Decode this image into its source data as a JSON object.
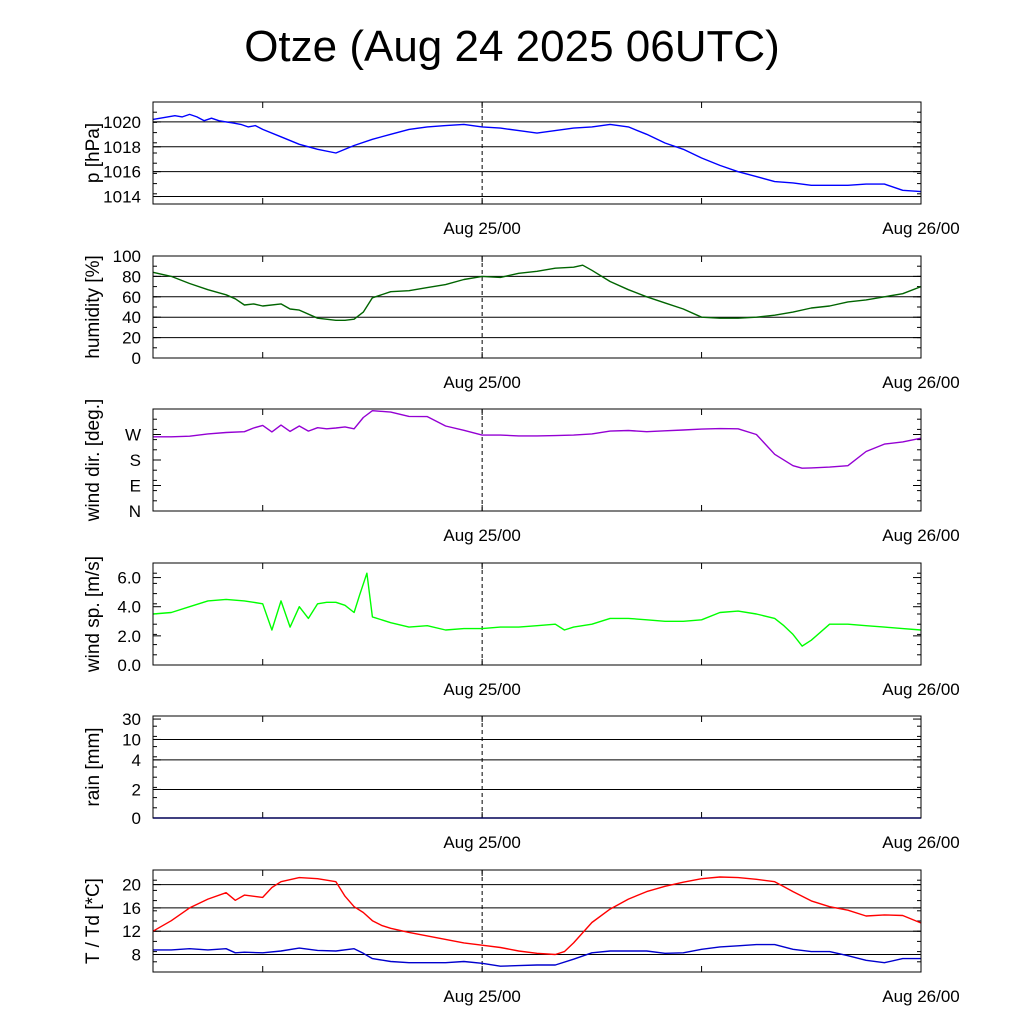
{
  "title": "Otze (Aug 24 2025 06UTC)",
  "chart_data": {
    "type": "line",
    "x_unit": "hours since Aug 24 06UTC",
    "x_range": [
      0,
      42
    ],
    "x_labels": [
      {
        "x": 18,
        "label": "Aug 25/00"
      },
      {
        "x": 42,
        "label": "Aug 26/00"
      }
    ],
    "minor_ticks_x": [
      6,
      18,
      30
    ],
    "panels": [
      {
        "id": "pressure",
        "ylabel": "p [hPa]",
        "ylim": [
          1013.4,
          1021.6
        ],
        "yticks": [
          1014,
          1016,
          1018,
          1020
        ],
        "ytick_labels": [
          "1014",
          "1016",
          "1018",
          "1020"
        ],
        "hlines": [
          1014,
          1016,
          1018,
          1020
        ],
        "series": [
          {
            "name": "pressure",
            "color": "#0000ff",
            "x": [
              0,
              0.4,
              0.8,
              1.2,
              1.6,
              2.0,
              2.4,
              2.8,
              3.2,
              3.6,
              4.0,
              4.4,
              4.8,
              5.2,
              5.6,
              6,
              7,
              8,
              9,
              10,
              11,
              12,
              13,
              14,
              15,
              16,
              17,
              18,
              19,
              20,
              21,
              22,
              23,
              24,
              25,
              26,
              27,
              28,
              29,
              30,
              31,
              32,
              33,
              34,
              35,
              36,
              37,
              38,
              39,
              40,
              41,
              42
            ],
            "y": [
              1020.2,
              1020.3,
              1020.4,
              1020.5,
              1020.4,
              1020.6,
              1020.4,
              1020.1,
              1020.3,
              1020.1,
              1020.0,
              1019.9,
              1019.8,
              1019.6,
              1019.7,
              1019.4,
              1018.8,
              1018.2,
              1017.8,
              1017.5,
              1018.1,
              1018.6,
              1019.0,
              1019.4,
              1019.6,
              1019.7,
              1019.8,
              1019.6,
              1019.5,
              1019.3,
              1019.1,
              1019.3,
              1019.5,
              1019.6,
              1019.8,
              1019.6,
              1019.0,
              1018.3,
              1017.8,
              1017.1,
              1016.5,
              1016.0,
              1015.6,
              1015.2,
              1015.1,
              1014.9,
              1014.9,
              1014.9,
              1015.0,
              1015.0,
              1014.5,
              1014.4
            ]
          }
        ]
      },
      {
        "id": "humidity",
        "ylabel": "humidity [%]",
        "ylim": [
          0,
          100
        ],
        "yticks": [
          0,
          20,
          40,
          60,
          80,
          100
        ],
        "ytick_labels": [
          "0",
          "20",
          "40",
          "60",
          "80",
          "100"
        ],
        "hlines": [
          20,
          40,
          60,
          80
        ],
        "series": [
          {
            "name": "humidity",
            "color": "#006400",
            "x": [
              0,
              1,
              2,
              3,
              4,
              4.5,
              5,
              5.5,
              6,
              7,
              7.5,
              8,
              9,
              10,
              10.5,
              11,
              11.5,
              12,
              13,
              14,
              15,
              16,
              17,
              18,
              19,
              20,
              21,
              22,
              23,
              23.5,
              24,
              25,
              26,
              27,
              28,
              29,
              30,
              31,
              32,
              33,
              34,
              35,
              36,
              37,
              38,
              39,
              40,
              41,
              42
            ],
            "y": [
              84,
              80,
              73,
              67,
              62,
              58,
              52,
              53,
              51,
              53,
              48,
              47,
              39,
              37,
              37,
              38,
              45,
              59,
              65,
              66,
              69,
              72,
              77,
              80,
              79,
              83,
              85,
              88,
              89,
              91,
              86,
              75,
              67,
              60,
              54,
              48,
              40,
              39,
              39,
              40,
              42,
              45,
              49,
              51,
              55,
              57,
              60,
              63,
              70
            ]
          }
        ]
      },
      {
        "id": "wind_direction",
        "ylabel": "wind dir. [deg.]",
        "ylim": [
          0,
          360
        ],
        "yticks": [
          0,
          90,
          180,
          270
        ],
        "ytick_labels": [
          "N",
          "E",
          "S",
          "W"
        ],
        "hlines": [],
        "series": [
          {
            "name": "wind direction",
            "color": "#9400d3",
            "x": [
              0,
              1,
              2,
              3,
              4,
              5,
              5.5,
              6,
              6.5,
              7,
              7.5,
              8,
              8.5,
              9,
              9.5,
              10,
              10.5,
              11,
              11.5,
              12,
              13,
              14,
              15,
              16,
              17,
              18,
              19,
              20,
              21,
              22,
              23,
              24,
              25,
              26,
              27,
              28,
              29,
              30,
              31,
              32,
              33,
              34,
              35,
              35.5,
              36,
              37,
              38,
              39,
              40,
              41,
              42
            ],
            "y": [
              262,
              262,
              264,
              272,
              277,
              280,
              293,
              302,
              279,
              303,
              281,
              300,
              282,
              294,
              290,
              293,
              297,
              290,
              330,
              354,
              349,
              334,
              333,
              300,
              285,
              268,
              268,
              265,
              265,
              266,
              268,
              272,
              282,
              284,
              280,
              283,
              286,
              289,
              291,
              290,
              270,
              200,
              160,
              151,
              152,
              155,
              160,
              210,
              236,
              244,
              257
            ]
          }
        ]
      },
      {
        "id": "wind_speed",
        "ylabel": "wind sp. [m/s]",
        "ylim": [
          0,
          7
        ],
        "yticks": [
          0,
          2,
          4,
          6
        ],
        "ytick_labels": [
          "0.0",
          "2.0",
          "4.0",
          "6.0"
        ],
        "hlines": [],
        "series": [
          {
            "name": "wind speed",
            "color": "#00ff00",
            "x": [
              0,
              1,
              2,
              3,
              4,
              5,
              5.5,
              6,
              6.5,
              7,
              7.5,
              8,
              8.5,
              9,
              9.5,
              10,
              10.5,
              11,
              11.3,
              11.7,
              12,
              13,
              14,
              15,
              16,
              17,
              18,
              19,
              20,
              21,
              22,
              22.5,
              23,
              24,
              25,
              26,
              27,
              28,
              29,
              30,
              31,
              32,
              33,
              34,
              34.5,
              35,
              35.5,
              36,
              37,
              38,
              39,
              40,
              41,
              42
            ],
            "y": [
              3.5,
              3.6,
              4.0,
              4.4,
              4.5,
              4.4,
              4.3,
              4.2,
              2.4,
              4.4,
              2.6,
              4.0,
              3.2,
              4.2,
              4.3,
              4.3,
              4.1,
              3.6,
              4.8,
              6.3,
              3.3,
              2.9,
              2.6,
              2.7,
              2.4,
              2.5,
              2.5,
              2.6,
              2.6,
              2.7,
              2.8,
              2.4,
              2.6,
              2.8,
              3.2,
              3.2,
              3.1,
              3.0,
              3.0,
              3.1,
              3.6,
              3.7,
              3.5,
              3.2,
              2.7,
              2.1,
              1.3,
              1.7,
              2.8,
              2.8,
              2.7,
              2.6,
              2.5,
              2.4
            ]
          }
        ]
      },
      {
        "id": "rain",
        "ylabel": "rain [mm]",
        "ylim": [
          0,
          30
        ],
        "yticks": [
          0,
          2,
          4,
          10,
          30
        ],
        "ytick_labels": [
          "0",
          "2",
          "4",
          "10",
          "30"
        ],
        "hlines": [
          2,
          4,
          10
        ],
        "scale": "nonlinear",
        "series": [
          {
            "name": "rain",
            "color": "#0000ff",
            "x": [
              0,
              42
            ],
            "y": [
              0,
              0
            ]
          }
        ]
      },
      {
        "id": "temperature",
        "ylabel": "T / Td [*C]",
        "ylim": [
          5,
          22.5
        ],
        "yticks": [
          8,
          12,
          16,
          20
        ],
        "ytick_labels": [
          "8",
          "12",
          "16",
          "20"
        ],
        "hlines": [
          8,
          12,
          16,
          20
        ],
        "series": [
          {
            "name": "T",
            "color": "#ff0000",
            "x": [
              0,
              1,
              2,
              3,
              4,
              4.5,
              5,
              6,
              6.5,
              7,
              8,
              9,
              10,
              10.5,
              11,
              11.5,
              12,
              12.5,
              13,
              14,
              15,
              16,
              17,
              18,
              19,
              20,
              21,
              22,
              22.5,
              23,
              24,
              25,
              26,
              27,
              28,
              29,
              30,
              31,
              32,
              33,
              34,
              35,
              36,
              37,
              38,
              39,
              40,
              41,
              42
            ],
            "y": [
              12.0,
              13.8,
              16.0,
              17.5,
              18.6,
              17.3,
              18.2,
              17.8,
              19.5,
              20.5,
              21.2,
              21.0,
              20.5,
              18.0,
              16.2,
              15.2,
              13.8,
              13.0,
              12.5,
              11.8,
              11.2,
              10.6,
              10.0,
              9.6,
              9.2,
              8.6,
              8.2,
              8.0,
              8.5,
              10.0,
              13.5,
              15.8,
              17.5,
              18.8,
              19.7,
              20.4,
              21.0,
              21.3,
              21.2,
              20.9,
              20.5,
              18.8,
              17.2,
              16.2,
              15.6,
              14.6,
              14.8,
              14.7,
              13.4
            ]
          },
          {
            "name": "Td",
            "color": "#0000cd",
            "x": [
              0,
              1,
              2,
              3,
              4,
              4.5,
              5,
              6,
              7,
              8,
              9,
              10,
              11,
              11.5,
              12,
              13,
              14,
              15,
              16,
              17,
              18,
              19,
              20,
              21,
              22,
              23,
              24,
              25,
              26,
              27,
              28,
              29,
              30,
              31,
              32,
              33,
              34,
              35,
              36,
              37,
              38,
              39,
              40,
              41,
              42
            ],
            "y": [
              8.8,
              8.8,
              9.0,
              8.8,
              9.0,
              8.3,
              8.4,
              8.3,
              8.6,
              9.1,
              8.7,
              8.6,
              9.0,
              8.2,
              7.3,
              6.8,
              6.6,
              6.6,
              6.6,
              6.8,
              6.5,
              6.0,
              6.1,
              6.2,
              6.2,
              7.2,
              8.3,
              8.6,
              8.6,
              8.6,
              8.2,
              8.3,
              8.9,
              9.3,
              9.5,
              9.7,
              9.7,
              8.9,
              8.5,
              8.5,
              7.8,
              7.0,
              6.6,
              7.3,
              7.3
            ]
          }
        ]
      }
    ]
  }
}
